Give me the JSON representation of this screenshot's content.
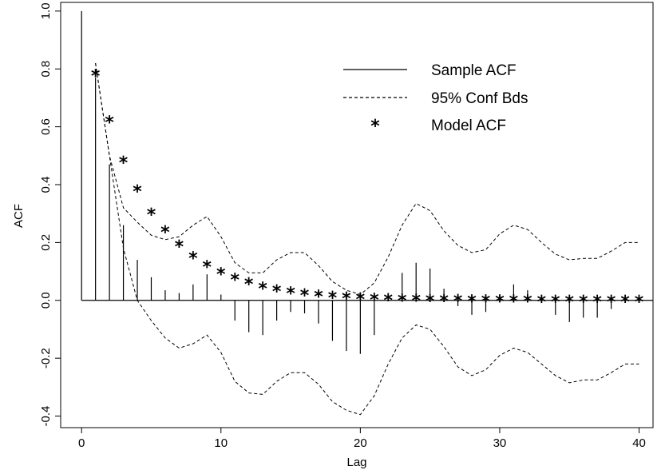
{
  "chart_data": {
    "type": "bar",
    "title": "",
    "xlabel": "Lag",
    "ylabel": "ACF",
    "xlim": [
      -1.5,
      41
    ],
    "ylim": [
      -0.44,
      1.03
    ],
    "xticks": [
      0,
      10,
      20,
      30,
      40
    ],
    "yticks": [
      -0.4,
      -0.2,
      0.0,
      0.2,
      0.4,
      0.6,
      0.8,
      1.0
    ],
    "ytick_labels": [
      "-0.4",
      "-0.2",
      "0.0",
      "0.2",
      "0.4",
      "0.6",
      "0.8",
      "1.0"
    ],
    "legend": {
      "position": "top-right",
      "entries": [
        {
          "label": "Sample ACF",
          "style": "solid-line"
        },
        {
          "label": "95% Conf Bds",
          "style": "dashed-line"
        },
        {
          "label": "Model ACF",
          "style": "star"
        }
      ]
    },
    "series": [
      {
        "name": "Sample ACF",
        "kind": "spikes",
        "lags": [
          0,
          1,
          2,
          3,
          4,
          5,
          6,
          7,
          8,
          9,
          10,
          11,
          12,
          13,
          14,
          15,
          16,
          17,
          18,
          19,
          20,
          21,
          22,
          23,
          24,
          25,
          26,
          27,
          28,
          29,
          30,
          31,
          32,
          33,
          34,
          35,
          36,
          37,
          38,
          39,
          40
        ],
        "values": [
          1.0,
          0.77,
          0.47,
          0.26,
          0.14,
          0.08,
          0.035,
          0.025,
          0.055,
          0.09,
          0.02,
          -0.07,
          -0.11,
          -0.12,
          -0.07,
          -0.04,
          -0.045,
          -0.08,
          -0.14,
          -0.175,
          -0.185,
          -0.12,
          0.0,
          0.095,
          0.13,
          0.11,
          0.04,
          -0.02,
          -0.05,
          -0.04,
          0.0,
          0.055,
          0.035,
          0.0,
          -0.05,
          -0.075,
          -0.06,
          -0.06,
          -0.03,
          0.0,
          0.0
        ]
      },
      {
        "name": "95% Conf Bds",
        "kind": "dashed-band",
        "lags": [
          1,
          2,
          3,
          4,
          5,
          6,
          7,
          8,
          9,
          10,
          11,
          12,
          13,
          14,
          15,
          16,
          17,
          18,
          19,
          20,
          21,
          22,
          23,
          24,
          25,
          26,
          27,
          28,
          29,
          30,
          31,
          32,
          33,
          34,
          35,
          36,
          37,
          38,
          39,
          40
        ],
        "upper": [
          0.82,
          0.5,
          0.32,
          0.27,
          0.225,
          0.21,
          0.22,
          0.26,
          0.29,
          0.22,
          0.13,
          0.095,
          0.095,
          0.14,
          0.165,
          0.165,
          0.12,
          0.065,
          0.035,
          0.02,
          0.06,
          0.15,
          0.26,
          0.335,
          0.31,
          0.24,
          0.19,
          0.165,
          0.175,
          0.23,
          0.26,
          0.245,
          0.2,
          0.16,
          0.14,
          0.145,
          0.145,
          0.17,
          0.2,
          0.2
        ],
        "lower": [
          0.82,
          0.5,
          0.18,
          0.0,
          -0.07,
          -0.13,
          -0.165,
          -0.15,
          -0.12,
          -0.18,
          -0.28,
          -0.32,
          -0.325,
          -0.28,
          -0.25,
          -0.25,
          -0.29,
          -0.35,
          -0.38,
          -0.395,
          -0.33,
          -0.22,
          -0.13,
          -0.085,
          -0.1,
          -0.16,
          -0.23,
          -0.26,
          -0.24,
          -0.19,
          -0.165,
          -0.18,
          -0.22,
          -0.26,
          -0.285,
          -0.275,
          -0.275,
          -0.25,
          -0.22,
          -0.22
        ]
      },
      {
        "name": "Model ACF",
        "kind": "stars",
        "lags": [
          1,
          2,
          3,
          4,
          5,
          6,
          7,
          8,
          9,
          10,
          11,
          12,
          13,
          14,
          15,
          16,
          17,
          18,
          19,
          20,
          21,
          22,
          23,
          24,
          25,
          26,
          27,
          28,
          29,
          30,
          31,
          32,
          33,
          34,
          35,
          36,
          37,
          38,
          39,
          40
        ],
        "values": [
          0.78,
          0.62,
          0.48,
          0.38,
          0.3,
          0.24,
          0.19,
          0.15,
          0.12,
          0.095,
          0.075,
          0.06,
          0.045,
          0.035,
          0.028,
          0.022,
          0.017,
          0.013,
          0.01,
          0.008,
          0.006,
          0.005,
          0.004,
          0.003,
          0.002,
          0.002,
          0.002,
          0.001,
          0.001,
          0.001,
          0.001,
          0.001,
          0.0,
          0.0,
          0.0,
          0.0,
          0.0,
          0.0,
          0.0,
          0.0
        ]
      }
    ]
  }
}
